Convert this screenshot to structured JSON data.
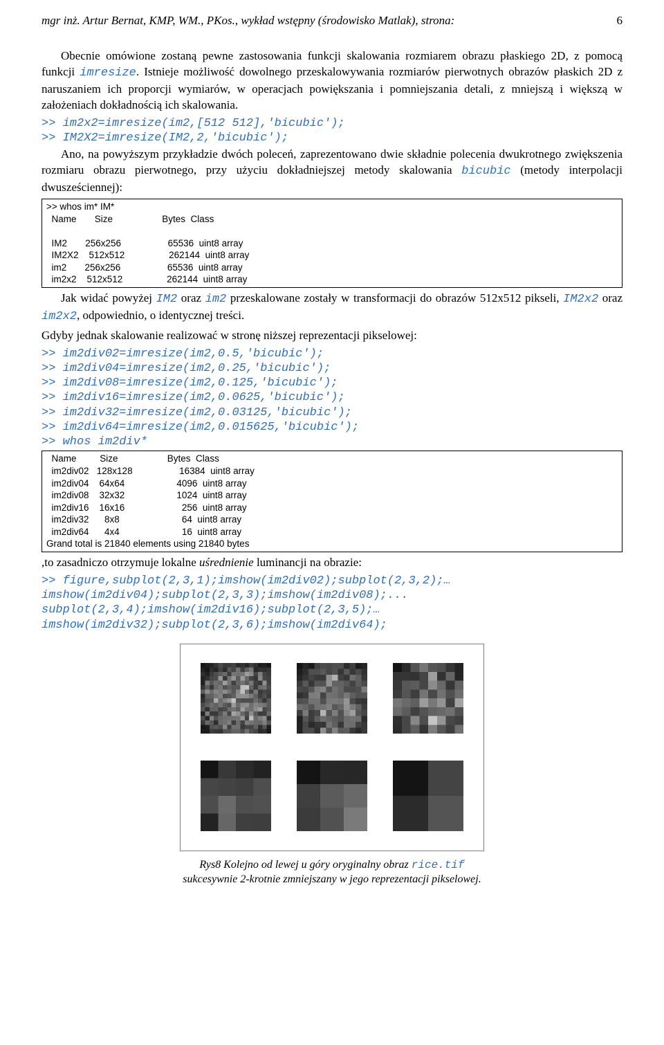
{
  "header": {
    "text": "mgr inż. Artur Bernat, KMP, WM., PKos., wykład wstępny (środowisko Matlak), strona:",
    "page": "6"
  },
  "para1_before": "Obecnie omówione zostaną pewne zastosowania funkcji skalowania rozmiarem obrazu płaskiego 2D, z pomocą funkcji ",
  "para1_code": "imresize",
  "para1_after": ". Istnieje możliwość dowolnego przeskalowywania rozmiarów pierwotnych obrazów płaskich 2D z naruszaniem ich proporcji wymiarów, w operacjach powiększania i pomniejszania detali, z mniejszą i większą w założeniach dokładnością ich skalowania.",
  "code_block1": ">> im2x2=imresize(im2,[512 512],'bicubic');\n>> IM2X2=imresize(IM2,2,'bicubic');",
  "para2_before": "Ano, na powyższym przykładzie dwóch poleceń, zaprezentowano dwie składnie polecenia dwukrotnego zwiększenia rozmiaru obrazu pierwotnego, przy użyciu dokładniejszej metody skalowania ",
  "para2_code": "bicubic",
  "para2_after": " (metody interpolacji dwusześciennej):",
  "box1": ">> whos im* IM*\n  Name       Size                   Bytes  Class\n\n  IM2       256x256                  65536  uint8 array\n  IM2X2    512x512                 262144  uint8 array\n  im2       256x256                  65536  uint8 array\n  im2x2    512x512                 262144  uint8 array",
  "para3_a": "Jak widać powyżej ",
  "para3_code1": "IM2",
  "para3_b": " oraz ",
  "para3_code2": "im2",
  "para3_c": " przeskalowane zostały w transformacji do obrazów 512x512 pikseli, ",
  "para3_code3": "IM2x2",
  "para3_d": " oraz ",
  "para3_code4": "im2x2",
  "para3_e": ", odpowiednio, o identycznej treści.",
  "para4": "Gdyby jednak skalowanie realizować w stronę niższej reprezentacji pikselowej:",
  "code_block2": ">> im2div02=imresize(im2,0.5,'bicubic');\n>> im2div04=imresize(im2,0.25,'bicubic');\n>> im2div08=imresize(im2,0.125,'bicubic');\n>> im2div16=imresize(im2,0.0625,'bicubic');\n>> im2div32=imresize(im2,0.03125,'bicubic');\n>> im2div64=imresize(im2,0.015625,'bicubic');\n>> whos im2div*",
  "box2": "  Name         Size                   Bytes  Class\n  im2div02   128x128                  16384  uint8 array\n  im2div04    64x64                    4096  uint8 array\n  im2div08    32x32                    1024  uint8 array\n  im2div16    16x16                      256  uint8 array\n  im2div32      8x8                        64  uint8 array\n  im2div64      4x4                        16  uint8 array\nGrand total is 21840 elements using 21840 bytes",
  "para5_a": ",to zasadniczo otrzymuje lokalne ",
  "para5_ital": "uśrednienie",
  "para5_b": " luminancji na obrazie:",
  "code_block3": ">> figure,subplot(2,3,1);imshow(im2div02);subplot(2,3,2);…\nimshow(im2div04);subplot(2,3,3);imshow(im2div08);...\nsubplot(2,3,4);imshow(im2div16);subplot(2,3,5);…\nimshow(im2div32);subplot(2,3,6);imshow(im2div64);",
  "caption_a": "Rys8 Kolejno od lewej u góry oryginalny obraz ",
  "caption_code": "rice.tif",
  "caption_b": "sukcesywnie 2-krotnie zmniejszany w jego reprezentacji pikselowej.",
  "figure": {
    "frame_border": "#808080",
    "thumbs": [
      {
        "resolution": 16,
        "base": "#6a6a6a"
      },
      {
        "resolution": 12,
        "base": "#6a6a6a"
      },
      {
        "resolution": 8,
        "base": "#6a6a6a"
      },
      {
        "resolution": 4,
        "base": "#6a6a6a"
      },
      {
        "resolution": 3,
        "base": "#6a6a6a"
      },
      {
        "resolution": 2,
        "base": "#6a6a6a"
      }
    ]
  }
}
